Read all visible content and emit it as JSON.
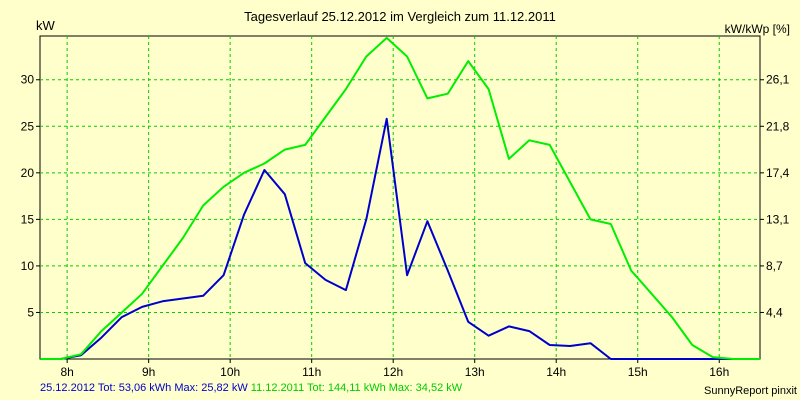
{
  "chart_data": {
    "type": "line",
    "title": "Tagesverlauf 25.12.2012 im Vergleich zum 11.12.2011",
    "ylabel_left": "kW",
    "ylabel_right": "kW/kWp [%]",
    "x_ticks": [
      "8h",
      "9h",
      "10h",
      "11h",
      "12h",
      "13h",
      "14h",
      "15h",
      "16h"
    ],
    "y_ticks_left": [
      5,
      10,
      15,
      20,
      25,
      30
    ],
    "y_ticks_right": [
      "4,4",
      "8,7",
      "13,1",
      "17,4",
      "21,8",
      "26,1"
    ],
    "xlim": [
      7.667,
      16.5
    ],
    "ylim": [
      0,
      34.7
    ],
    "grid": true,
    "series": [
      {
        "name": "25.12.2012",
        "color": "#0000cc",
        "x": [
          7.67,
          7.92,
          8.17,
          8.42,
          8.67,
          8.92,
          9.17,
          9.42,
          9.67,
          9.92,
          10.17,
          10.42,
          10.67,
          10.92,
          11.17,
          11.42,
          11.67,
          11.92,
          12.17,
          12.42,
          12.67,
          12.92,
          13.17,
          13.42,
          13.67,
          13.92,
          14.17,
          14.42,
          14.67,
          14.92,
          15.17,
          15.42,
          15.67,
          15.92,
          16.17,
          16.5
        ],
        "values": [
          0,
          0,
          0.4,
          2.3,
          4.5,
          5.6,
          6.2,
          6.5,
          6.8,
          9.0,
          15.5,
          20.3,
          17.7,
          10.3,
          8.5,
          7.4,
          15.0,
          25.8,
          9.0,
          14.8,
          9.5,
          4.0,
          2.5,
          3.5,
          3.0,
          1.5,
          1.4,
          1.7,
          0,
          0,
          0,
          0,
          0,
          0,
          0,
          0
        ]
      },
      {
        "name": "11.12.2011",
        "color": "#00ee00",
        "x": [
          7.67,
          7.92,
          8.17,
          8.42,
          8.67,
          8.92,
          9.17,
          9.42,
          9.67,
          9.92,
          10.17,
          10.42,
          10.67,
          10.92,
          11.17,
          11.42,
          11.67,
          11.92,
          12.17,
          12.42,
          12.67,
          12.92,
          13.17,
          13.42,
          13.67,
          13.92,
          14.17,
          14.42,
          14.67,
          14.92,
          15.17,
          15.42,
          15.67,
          15.92,
          16.17,
          16.5
        ],
        "values": [
          0,
          0,
          0.5,
          3.0,
          5.0,
          7.0,
          10.0,
          13.0,
          16.5,
          18.5,
          20.0,
          21.0,
          22.5,
          23.0,
          26.0,
          29.0,
          32.5,
          34.5,
          32.5,
          28.0,
          28.5,
          32.0,
          29.0,
          21.5,
          23.5,
          23.0,
          19.0,
          15.0,
          14.5,
          9.5,
          7.0,
          4.5,
          1.5,
          0.2,
          0,
          0
        ]
      }
    ]
  },
  "legend": {
    "series1_text": "25.12.2012 Tot: 53,06 kWh Max: 25,82 kW",
    "series2_text": "11.12.2011 Tot: 144,11 kWh Max: 34,52 kW"
  },
  "credit": "SunnyReport pinxit"
}
